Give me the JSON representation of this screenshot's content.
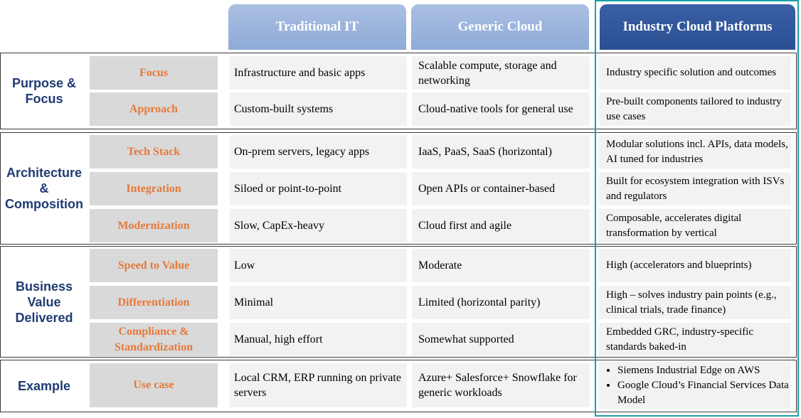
{
  "headers": {
    "traditional": "Traditional IT",
    "generic": "Generic Cloud",
    "industry": "Industry Cloud Platforms"
  },
  "groups": {
    "purpose": {
      "label": "Purpose & Focus",
      "rows": [
        {
          "sub": "Focus",
          "trad": "Infrastructure and basic apps",
          "gen": "Scalable compute, storage and networking",
          "ind": "Industry specific solution and outcomes"
        },
        {
          "sub": "Approach",
          "trad": "Custom-built systems",
          "gen": "Cloud-native tools for general use",
          "ind": "Pre-built components tailored to industry use cases"
        }
      ]
    },
    "architecture": {
      "label": "Architecture & Composition",
      "rows": [
        {
          "sub": "Tech Stack",
          "trad": "On-prem servers, legacy apps",
          "gen": "IaaS, PaaS, SaaS (horizontal)",
          "ind": "Modular solutions incl. APIs, data models, AI tuned for industries"
        },
        {
          "sub": "Integration",
          "trad": "Siloed or point-to-point",
          "gen": "Open APIs or container-based",
          "ind": "Built for ecosystem integration with ISVs and regulators"
        },
        {
          "sub": "Modernization",
          "trad": "Slow, CapEx-heavy",
          "gen": "Cloud first and agile",
          "ind": "Composable, accelerates digital transformation by vertical"
        }
      ]
    },
    "business": {
      "label": "Business Value Delivered",
      "rows": [
        {
          "sub": "Speed to Value",
          "trad": "Low",
          "gen": "Moderate",
          "ind": "High (accelerators and blueprints)"
        },
        {
          "sub": "Differentiation",
          "trad": "Minimal",
          "gen": "Limited (horizontal parity)",
          "ind": "High – solves industry pain points (e.g., clinical trials, trade finance)"
        },
        {
          "sub": "Compliance & Standardization",
          "trad": "Manual, high effort",
          "gen": "Somewhat supported",
          "ind": "Embedded GRC, industry-specific standards baked-in"
        }
      ]
    },
    "example": {
      "label": "Example",
      "rows": [
        {
          "sub": "Use case",
          "trad": "Local CRM, ERP running on private servers",
          "gen": "Azure+ Salesforce+ Snowflake for generic workloads",
          "ind_bullets": [
            "Siemens Industrial Edge on AWS",
            "Google Cloud’s Financial Services Data Model"
          ]
        }
      ]
    }
  }
}
